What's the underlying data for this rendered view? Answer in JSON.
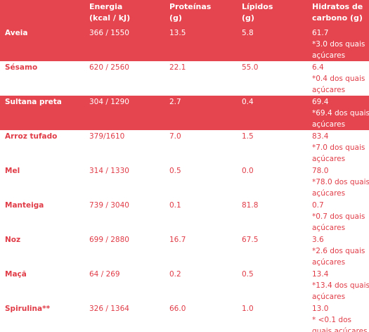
{
  "table": {
    "header": [
      [
        "",
        ""
      ],
      [
        "Energia",
        "(kcal / kJ)"
      ],
      [
        "Proteínas",
        "(g)"
      ],
      [
        "Lípidos",
        "(g)"
      ],
      [
        "Hidratos de",
        "carbono (g)"
      ]
    ],
    "rows": [
      {
        "name": "Aveia",
        "energy": "366 / 1550",
        "protein": "13.5",
        "lipids": "5.8",
        "carbs": [
          "61.7",
          "*3.0 dos quais",
          "açúcares"
        ],
        "highlight": true
      },
      {
        "name": "Sésamo",
        "energy": "620 / 2560",
        "protein": "22.1",
        "lipids": "55.0",
        "carbs": [
          "6.4",
          "*0.4 dos quais",
          "açúcares"
        ],
        "highlight": false
      },
      {
        "name": "Sultana preta",
        "energy": "304 / 1290",
        "protein": "2.7",
        "lipids": "0.4",
        "carbs": [
          "69.4",
          "*69.4 dos quais",
          "açúcares"
        ],
        "highlight": true
      },
      {
        "name": "Arroz tufado",
        "energy": "379/1610",
        "protein": "7.0",
        "lipids": "1.5",
        "carbs": [
          "83.4",
          "*7.0 dos quais",
          "açúcares"
        ],
        "highlight": false
      },
      {
        "name": "Mel",
        "energy": "314 / 1330",
        "protein": "0.5",
        "lipids": "0.0",
        "carbs": [
          "78.0",
          "*78.0 dos quais",
          "açúcares"
        ],
        "highlight": false
      },
      {
        "name": "Manteiga",
        "energy": "739 / 3040",
        "protein": "0.1",
        "lipids": "81.8",
        "carbs": [
          "0.7",
          "*0.7 dos quais",
          "açúcares"
        ],
        "highlight": false
      },
      {
        "name": "Noz",
        "energy": "699 / 2880",
        "protein": "16.7",
        "lipids": "67.5",
        "carbs": [
          "3.6",
          "*2.6 dos quais",
          "açúcares"
        ],
        "highlight": false
      },
      {
        "name": "Maçã",
        "energy": "64 / 269",
        "protein": "0.2",
        "lipids": "0.5",
        "carbs": [
          "13.4",
          "*13.4 dos quais",
          "açúcares"
        ],
        "highlight": false
      },
      {
        "name": "Spirulina**",
        "energy": "326 / 1364",
        "protein": "66.0",
        "lipids": "1.0",
        "carbs": [
          "13.0",
          "* <0.1 dos",
          "quais açúcares"
        ],
        "highlight": false
      }
    ]
  }
}
